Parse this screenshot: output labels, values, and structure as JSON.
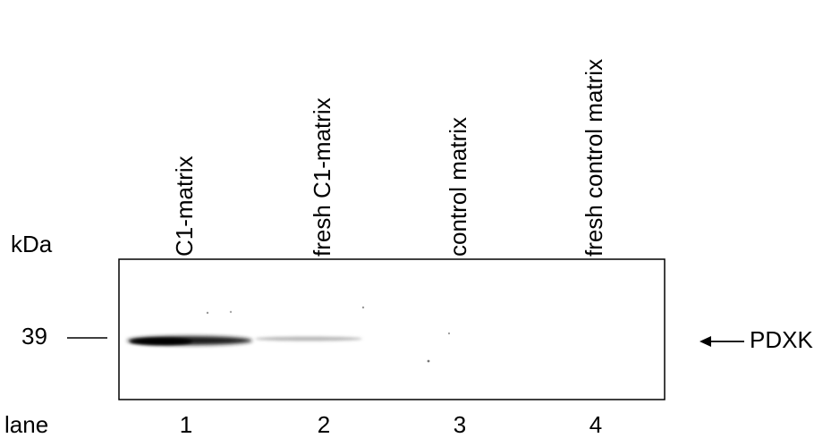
{
  "kda_label": "kDa",
  "marker": "39",
  "band_label": "PDXK",
  "lane_label": "lane",
  "lanes": [
    {
      "name": "C1-matrix",
      "number": "1"
    },
    {
      "name": "fresh C1-matrix",
      "number": "2"
    },
    {
      "name": "control matrix",
      "number": "3"
    },
    {
      "name": "fresh control matrix",
      "number": "4"
    }
  ]
}
